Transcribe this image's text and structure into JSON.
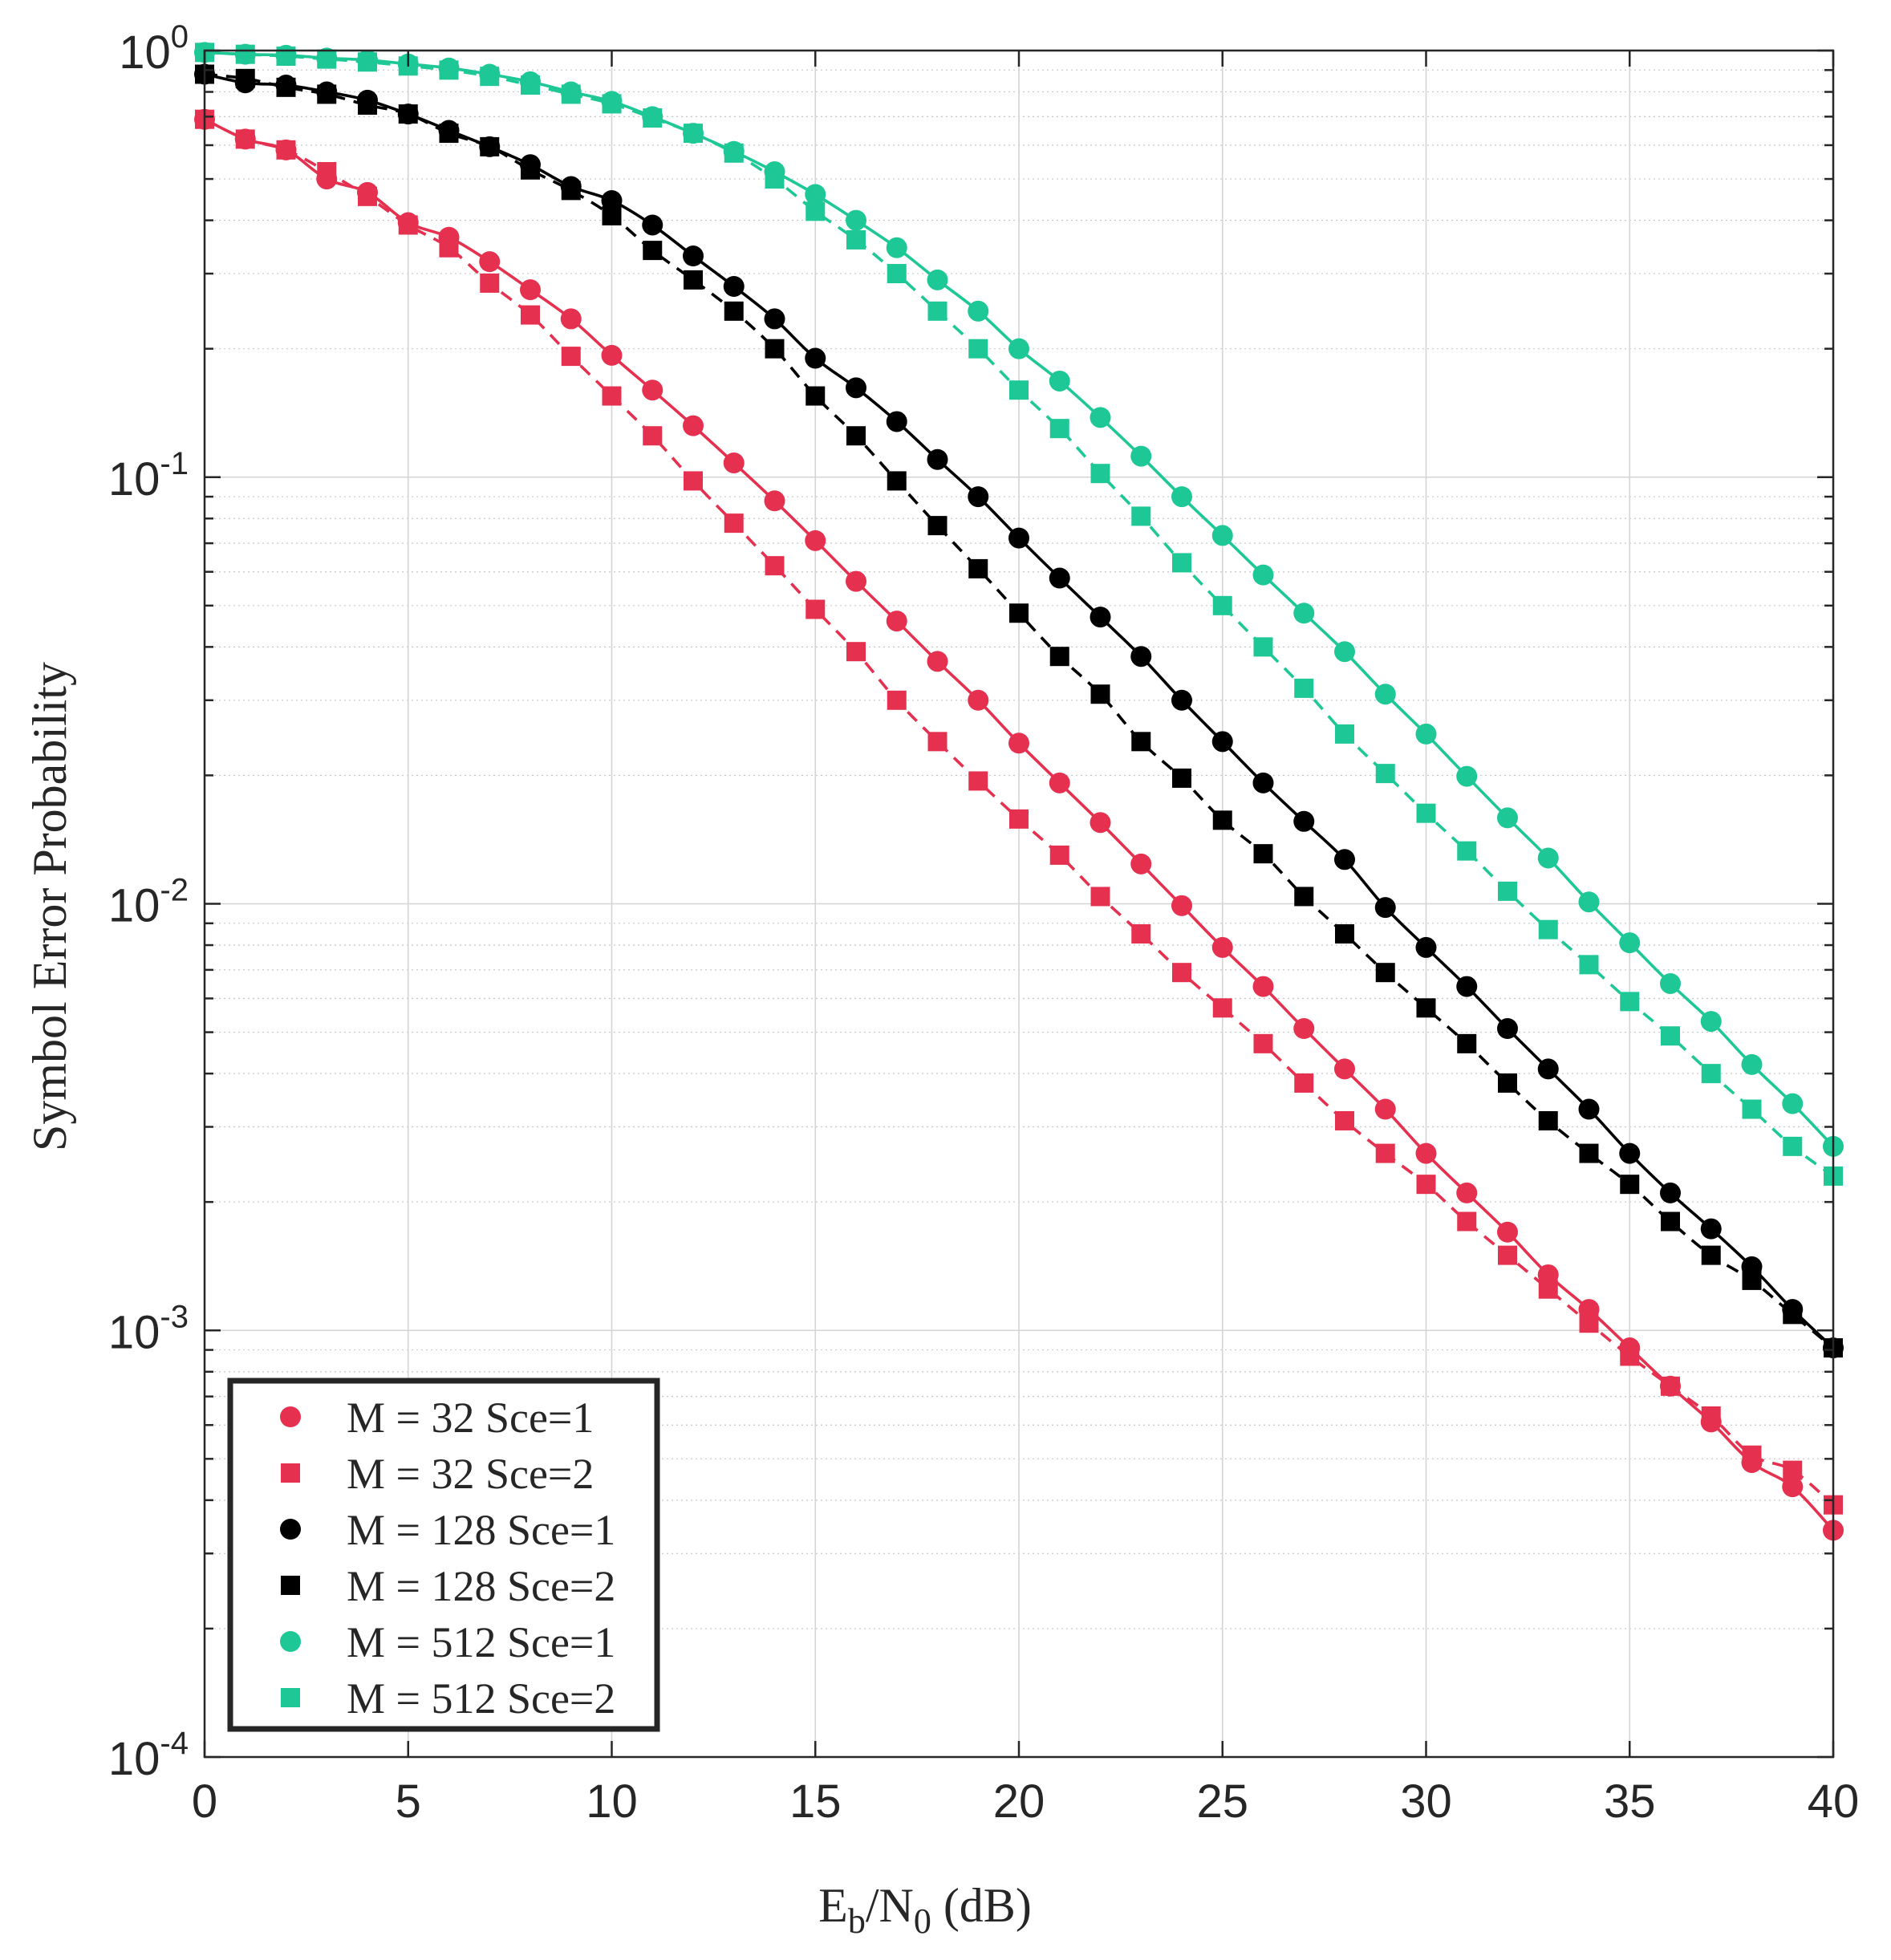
{
  "chart_data": {
    "type": "line",
    "title": "",
    "xlabel": {
      "main": "E",
      "sub1": "b",
      "mid": "/N",
      "sub2": "0",
      "tail": " (dB)"
    },
    "ylabel": "Symbol Error Probability",
    "xlim": [
      0,
      40
    ],
    "ylim": [
      0.0001,
      1
    ],
    "yscale": "log",
    "grid": true,
    "legend_position": "bottom-left",
    "x_ticks": [
      "0",
      "5",
      "10",
      "15",
      "20",
      "25",
      "30",
      "35",
      "40"
    ],
    "y_ticks": [
      {
        "base": "10",
        "exp": "0"
      },
      {
        "base": "10",
        "exp": "-1"
      },
      {
        "base": "10",
        "exp": "-2"
      },
      {
        "base": "10",
        "exp": "-3"
      },
      {
        "base": "10",
        "exp": "-4"
      }
    ],
    "x": [
      0,
      1,
      2,
      3,
      4,
      5,
      6,
      7,
      8,
      9,
      10,
      11,
      12,
      13,
      14,
      15,
      16,
      17,
      18,
      19,
      20,
      21,
      22,
      23,
      24,
      25,
      26,
      27,
      28,
      29,
      30,
      31,
      32,
      33,
      34,
      35,
      36,
      37,
      38,
      39,
      40
    ],
    "series": [
      {
        "name": "M = 32 Sce=1",
        "color": "#e5304f",
        "marker": "circle",
        "values": [
          0.69,
          0.62,
          0.585,
          0.5,
          0.465,
          0.395,
          0.365,
          0.32,
          0.275,
          0.235,
          0.193,
          0.16,
          0.132,
          0.108,
          0.088,
          0.071,
          0.057,
          0.046,
          0.037,
          0.03,
          0.0238,
          0.0192,
          0.0155,
          0.0124,
          0.0099,
          0.0079,
          0.0064,
          0.0051,
          0.0041,
          0.0033,
          0.0026,
          0.0021,
          0.0017,
          0.00135,
          0.00112,
          0.00091,
          0.00074,
          0.00061,
          0.00049,
          0.00043,
          0.00034
        ]
      },
      {
        "name": "M = 32 Sce=2",
        "color": "#e5304f",
        "marker": "square",
        "values": [
          0.69,
          0.62,
          0.585,
          0.52,
          0.455,
          0.39,
          0.345,
          0.285,
          0.24,
          0.192,
          0.155,
          0.125,
          0.098,
          0.078,
          0.062,
          0.049,
          0.039,
          0.03,
          0.024,
          0.0194,
          0.0158,
          0.013,
          0.0104,
          0.0085,
          0.0069,
          0.0057,
          0.0047,
          0.0038,
          0.0031,
          0.0026,
          0.0022,
          0.0018,
          0.0015,
          0.00125,
          0.00104,
          0.00087,
          0.00074,
          0.00063,
          0.00051,
          0.00047,
          0.00039
        ]
      },
      {
        "name": "M = 128 Sce=1",
        "color": "#000000",
        "marker": "circle",
        "values": [
          0.88,
          0.84,
          0.83,
          0.8,
          0.765,
          0.71,
          0.65,
          0.595,
          0.54,
          0.48,
          0.445,
          0.39,
          0.33,
          0.28,
          0.235,
          0.19,
          0.162,
          0.135,
          0.11,
          0.09,
          0.072,
          0.058,
          0.047,
          0.038,
          0.03,
          0.024,
          0.0192,
          0.0156,
          0.0127,
          0.0098,
          0.0079,
          0.0064,
          0.0051,
          0.0041,
          0.0033,
          0.0026,
          0.0021,
          0.00173,
          0.00141,
          0.00112,
          0.00091
        ]
      },
      {
        "name": "M = 128 Sce=2",
        "color": "#000000",
        "marker": "square",
        "values": [
          0.88,
          0.86,
          0.82,
          0.79,
          0.745,
          0.71,
          0.64,
          0.595,
          0.525,
          0.47,
          0.41,
          0.34,
          0.29,
          0.245,
          0.2,
          0.155,
          0.125,
          0.098,
          0.077,
          0.061,
          0.048,
          0.038,
          0.031,
          0.024,
          0.0197,
          0.0157,
          0.0131,
          0.0104,
          0.0085,
          0.0069,
          0.0057,
          0.0047,
          0.0038,
          0.0031,
          0.0026,
          0.0022,
          0.0018,
          0.0015,
          0.00131,
          0.00109,
          0.00091
        ]
      },
      {
        "name": "M = 512 Sce=1",
        "color": "#1ec896",
        "marker": "circle",
        "values": [
          0.99,
          0.98,
          0.975,
          0.96,
          0.95,
          0.93,
          0.91,
          0.88,
          0.845,
          0.8,
          0.76,
          0.7,
          0.64,
          0.58,
          0.52,
          0.46,
          0.4,
          0.345,
          0.29,
          0.245,
          0.2,
          0.168,
          0.138,
          0.112,
          0.09,
          0.073,
          0.059,
          0.048,
          0.039,
          0.031,
          0.025,
          0.0199,
          0.0159,
          0.0128,
          0.0101,
          0.0081,
          0.0065,
          0.0053,
          0.0042,
          0.0034,
          0.0027
        ]
      },
      {
        "name": "M = 512 Sce=2",
        "color": "#1ec896",
        "marker": "square",
        "values": [
          0.99,
          0.98,
          0.97,
          0.955,
          0.94,
          0.92,
          0.9,
          0.87,
          0.83,
          0.79,
          0.75,
          0.695,
          0.64,
          0.575,
          0.5,
          0.42,
          0.36,
          0.3,
          0.245,
          0.2,
          0.16,
          0.13,
          0.102,
          0.081,
          0.063,
          0.05,
          0.04,
          0.032,
          0.025,
          0.0202,
          0.0163,
          0.0133,
          0.0107,
          0.0087,
          0.0072,
          0.0059,
          0.0049,
          0.004,
          0.0033,
          0.0027,
          0.0023
        ]
      }
    ]
  }
}
